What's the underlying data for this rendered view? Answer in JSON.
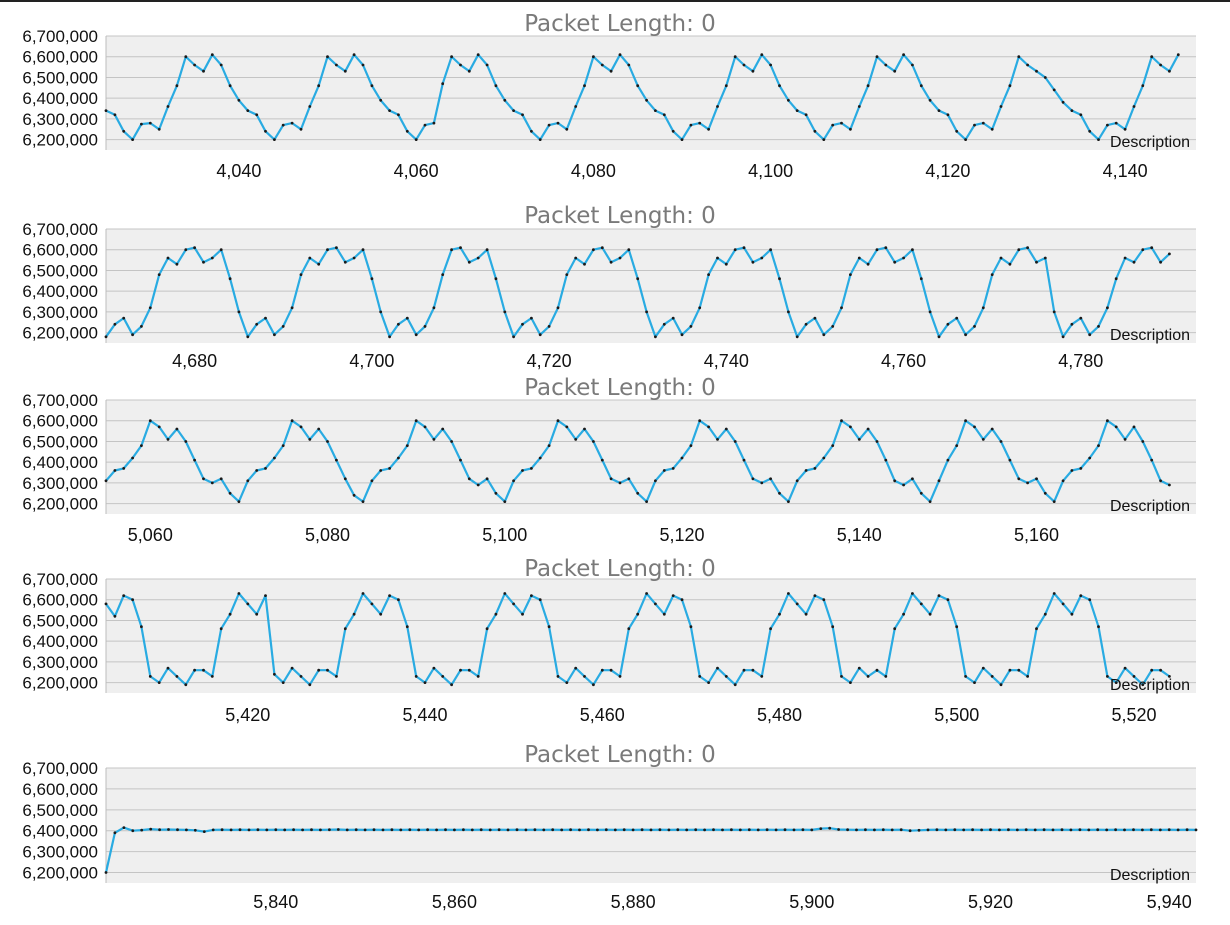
{
  "chart_data": [
    {
      "type": "line",
      "title": "Packet Length: 0",
      "description": "Description",
      "ylim": [
        6150000,
        6700000
      ],
      "yticks": [
        6200000,
        6300000,
        6400000,
        6500000,
        6600000,
        6700000
      ],
      "xlim": [
        4025,
        4148
      ],
      "xticks": [
        4040,
        4060,
        4080,
        4100,
        4120,
        4140
      ],
      "grid": true,
      "color": "#29abe2",
      "series": [
        {
          "x_start": 4025,
          "values": [
            6340000,
            6320000,
            6240000,
            6200000,
            6275000,
            6280000,
            6250000,
            6360000,
            6460000,
            6600000,
            6560000,
            6530000,
            6610000,
            6560000,
            6460000,
            6390000,
            6340000,
            6320000,
            6240000,
            6200000,
            6270000,
            6280000,
            6250000,
            6360000,
            6460000,
            6600000,
            6560000,
            6530000,
            6610000,
            6560000,
            6460000,
            6390000,
            6340000,
            6320000,
            6240000,
            6200000,
            6270000,
            6280000,
            6470000,
            6600000,
            6560000,
            6530000,
            6610000,
            6560000,
            6460000,
            6390000,
            6340000,
            6320000,
            6240000,
            6200000,
            6270000,
            6280000,
            6250000,
            6360000,
            6460000,
            6600000,
            6560000,
            6530000,
            6610000,
            6560000,
            6460000,
            6390000,
            6340000,
            6320000,
            6240000,
            6200000,
            6270000,
            6280000,
            6250000,
            6360000,
            6460000,
            6600000,
            6560000,
            6530000,
            6610000,
            6560000,
            6460000,
            6390000,
            6340000,
            6320000,
            6240000,
            6200000,
            6270000,
            6280000,
            6250000,
            6360000,
            6460000,
            6600000,
            6560000,
            6530000,
            6610000,
            6560000,
            6460000,
            6390000,
            6340000,
            6320000,
            6240000,
            6200000,
            6270000,
            6280000,
            6250000,
            6360000,
            6460000,
            6600000,
            6560000,
            6530000,
            6500000,
            6440000,
            6380000,
            6340000,
            6320000,
            6240000,
            6200000,
            6270000,
            6280000,
            6250000,
            6360000,
            6460000,
            6600000,
            6560000,
            6530000,
            6610000
          ]
        }
      ]
    },
    {
      "type": "line",
      "title": "Packet Length: 0",
      "description": "Description",
      "ylim": [
        6150000,
        6700000
      ],
      "yticks": [
        6200000,
        6300000,
        6400000,
        6500000,
        6600000,
        6700000
      ],
      "xlim": [
        4670,
        4793
      ],
      "xticks": [
        4680,
        4700,
        4720,
        4740,
        4760,
        4780
      ],
      "grid": true,
      "color": "#29abe2",
      "series": [
        {
          "x_start": 4670,
          "values": [
            6180000,
            6240000,
            6270000,
            6190000,
            6230000,
            6320000,
            6480000,
            6560000,
            6530000,
            6600000,
            6610000,
            6540000,
            6560000,
            6600000,
            6460000,
            6300000,
            6180000,
            6240000,
            6270000,
            6190000,
            6230000,
            6320000,
            6480000,
            6560000,
            6530000,
            6600000,
            6610000,
            6540000,
            6560000,
            6600000,
            6460000,
            6300000,
            6180000,
            6240000,
            6270000,
            6190000,
            6230000,
            6320000,
            6480000,
            6600000,
            6610000,
            6540000,
            6560000,
            6600000,
            6460000,
            6300000,
            6180000,
            6240000,
            6270000,
            6190000,
            6230000,
            6320000,
            6480000,
            6560000,
            6530000,
            6600000,
            6610000,
            6540000,
            6560000,
            6600000,
            6460000,
            6300000,
            6180000,
            6240000,
            6270000,
            6190000,
            6230000,
            6320000,
            6480000,
            6560000,
            6530000,
            6600000,
            6610000,
            6540000,
            6560000,
            6600000,
            6460000,
            6300000,
            6180000,
            6240000,
            6270000,
            6190000,
            6230000,
            6320000,
            6480000,
            6560000,
            6530000,
            6600000,
            6610000,
            6540000,
            6560000,
            6600000,
            6460000,
            6300000,
            6180000,
            6240000,
            6270000,
            6190000,
            6230000,
            6320000,
            6480000,
            6560000,
            6530000,
            6600000,
            6610000,
            6540000,
            6560000,
            6300000,
            6180000,
            6240000,
            6270000,
            6190000,
            6230000,
            6320000,
            6460000,
            6560000,
            6540000,
            6600000,
            6610000,
            6540000,
            6580000
          ]
        }
      ]
    },
    {
      "type": "line",
      "title": "Packet Length: 0",
      "description": "Description",
      "ylim": [
        6150000,
        6700000
      ],
      "yticks": [
        6200000,
        6300000,
        6400000,
        6500000,
        6600000,
        6700000
      ],
      "xlim": [
        5055,
        5178
      ],
      "xticks": [
        5060,
        5080,
        5100,
        5120,
        5140,
        5160
      ],
      "grid": true,
      "color": "#29abe2",
      "series": [
        {
          "x_start": 5055,
          "values": [
            6310000,
            6360000,
            6370000,
            6420000,
            6480000,
            6600000,
            6570000,
            6510000,
            6560000,
            6500000,
            6410000,
            6320000,
            6300000,
            6320000,
            6250000,
            6210000,
            6310000,
            6360000,
            6370000,
            6420000,
            6480000,
            6600000,
            6570000,
            6510000,
            6560000,
            6500000,
            6410000,
            6320000,
            6240000,
            6210000,
            6310000,
            6360000,
            6370000,
            6420000,
            6480000,
            6600000,
            6570000,
            6510000,
            6560000,
            6500000,
            6410000,
            6320000,
            6290000,
            6320000,
            6250000,
            6210000,
            6310000,
            6360000,
            6370000,
            6420000,
            6480000,
            6600000,
            6570000,
            6510000,
            6560000,
            6500000,
            6410000,
            6320000,
            6300000,
            6320000,
            6250000,
            6210000,
            6310000,
            6360000,
            6370000,
            6420000,
            6480000,
            6600000,
            6570000,
            6510000,
            6560000,
            6500000,
            6410000,
            6320000,
            6300000,
            6320000,
            6250000,
            6210000,
            6310000,
            6360000,
            6370000,
            6420000,
            6480000,
            6600000,
            6570000,
            6510000,
            6560000,
            6500000,
            6410000,
            6310000,
            6290000,
            6320000,
            6250000,
            6210000,
            6310000,
            6410000,
            6480000,
            6600000,
            6570000,
            6510000,
            6560000,
            6500000,
            6410000,
            6320000,
            6300000,
            6320000,
            6250000,
            6210000,
            6310000,
            6360000,
            6370000,
            6420000,
            6480000,
            6600000,
            6570000,
            6510000,
            6570000,
            6500000,
            6410000,
            6310000,
            6290000
          ]
        }
      ]
    },
    {
      "type": "line",
      "title": "Packet Length: 0",
      "description": "Description",
      "ylim": [
        6150000,
        6700000
      ],
      "yticks": [
        6200000,
        6300000,
        6400000,
        6500000,
        6600000,
        6700000
      ],
      "xlim": [
        5404,
        5527
      ],
      "xticks": [
        5420,
        5440,
        5460,
        5480,
        5500,
        5520
      ],
      "grid": true,
      "color": "#29abe2",
      "series": [
        {
          "x_start": 5404,
          "values": [
            6580000,
            6520000,
            6620000,
            6600000,
            6470000,
            6230000,
            6200000,
            6270000,
            6230000,
            6190000,
            6260000,
            6260000,
            6230000,
            6460000,
            6530000,
            6630000,
            6580000,
            6530000,
            6620000,
            6240000,
            6200000,
            6270000,
            6230000,
            6190000,
            6260000,
            6260000,
            6230000,
            6460000,
            6530000,
            6630000,
            6580000,
            6530000,
            6620000,
            6600000,
            6470000,
            6230000,
            6200000,
            6270000,
            6230000,
            6190000,
            6260000,
            6260000,
            6230000,
            6460000,
            6530000,
            6630000,
            6580000,
            6530000,
            6620000,
            6600000,
            6470000,
            6230000,
            6200000,
            6270000,
            6230000,
            6190000,
            6260000,
            6260000,
            6230000,
            6460000,
            6530000,
            6630000,
            6580000,
            6530000,
            6620000,
            6600000,
            6470000,
            6230000,
            6200000,
            6270000,
            6230000,
            6190000,
            6260000,
            6260000,
            6230000,
            6460000,
            6530000,
            6630000,
            6580000,
            6530000,
            6620000,
            6600000,
            6470000,
            6230000,
            6200000,
            6270000,
            6230000,
            6260000,
            6230000,
            6460000,
            6530000,
            6630000,
            6580000,
            6530000,
            6620000,
            6600000,
            6470000,
            6230000,
            6200000,
            6270000,
            6230000,
            6190000,
            6260000,
            6260000,
            6230000,
            6460000,
            6530000,
            6630000,
            6580000,
            6530000,
            6620000,
            6600000,
            6470000,
            6230000,
            6200000,
            6270000,
            6230000,
            6190000,
            6260000,
            6260000,
            6230000
          ]
        }
      ]
    },
    {
      "type": "line",
      "title": "Packet Length: 0",
      "description": "Description",
      "ylim": [
        6150000,
        6700000
      ],
      "yticks": [
        6200000,
        6300000,
        6400000,
        6500000,
        6600000,
        6700000
      ],
      "xlim": [
        5821,
        5943
      ],
      "xticks": [
        5840,
        5860,
        5880,
        5900,
        5920,
        5940
      ],
      "grid": true,
      "color": "#29abe2",
      "series": [
        {
          "x_start": 5821,
          "values": [
            6200000,
            6390000,
            6415000,
            6400000,
            6403000,
            6408000,
            6405000,
            6406000,
            6405000,
            6404000,
            6402000,
            6396000,
            6404000,
            6405000,
            6404000,
            6405000,
            6404000,
            6405000,
            6404000,
            6405000,
            6404000,
            6405000,
            6404000,
            6405000,
            6404000,
            6405000,
            6406000,
            6404000,
            6405000,
            6404000,
            6405000,
            6404000,
            6405000,
            6404000,
            6405000,
            6404000,
            6405000,
            6404000,
            6405000,
            6404000,
            6405000,
            6404000,
            6405000,
            6404000,
            6405000,
            6404000,
            6405000,
            6404000,
            6405000,
            6404000,
            6405000,
            6404000,
            6405000,
            6404000,
            6405000,
            6404000,
            6405000,
            6404000,
            6405000,
            6404000,
            6405000,
            6404000,
            6405000,
            6404000,
            6405000,
            6404000,
            6405000,
            6404000,
            6405000,
            6404000,
            6405000,
            6404000,
            6405000,
            6404000,
            6405000,
            6404000,
            6405000,
            6404000,
            6405000,
            6404000,
            6410000,
            6412000,
            6406000,
            6405000,
            6404000,
            6405000,
            6404000,
            6405000,
            6404000,
            6405000,
            6400000,
            6402000,
            6404000,
            6405000,
            6404000,
            6405000,
            6404000,
            6405000,
            6404000,
            6405000,
            6404000,
            6405000,
            6404000,
            6405000,
            6404000,
            6405000,
            6404000,
            6405000,
            6404000,
            6405000,
            6404000,
            6405000,
            6404000,
            6405000,
            6404000,
            6405000,
            6404000,
            6405000,
            6404000,
            6405000,
            6404000,
            6405000,
            6404000
          ]
        }
      ]
    }
  ]
}
